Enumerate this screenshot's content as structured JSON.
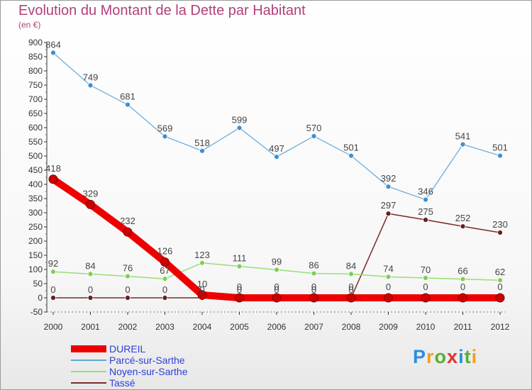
{
  "chart_data": {
    "type": "line",
    "title": "Evolution du Montant de la Dette par Habitant",
    "subtitle": "(en €)",
    "categories": [
      "2000",
      "2001",
      "2002",
      "2003",
      "2004",
      "2005",
      "2006",
      "2007",
      "2008",
      "2009",
      "2010",
      "2011",
      "2012"
    ],
    "ylim": [
      -50,
      900
    ],
    "yticks": [
      "-50",
      "0",
      "50",
      "100",
      "150",
      "200",
      "250",
      "300",
      "350",
      "400",
      "450",
      "500",
      "550",
      "600",
      "650",
      "700",
      "750",
      "800",
      "850",
      "900"
    ],
    "grid": false,
    "legend_position": "bottom-left",
    "series": [
      {
        "name": "DUREIL",
        "color": "#ee0000",
        "values": [
          418,
          329,
          232,
          126,
          10,
          0,
          0,
          0,
          0,
          0,
          0,
          0,
          0
        ],
        "labels": [
          "418",
          "329",
          "232",
          "126",
          "10",
          "0",
          "0",
          "0",
          "0",
          "0",
          "0",
          "0",
          "0"
        ]
      },
      {
        "name": "Parcé-sur-Sarthe",
        "color": "#5ea8d8",
        "values": [
          864,
          749,
          681,
          569,
          518,
          599,
          497,
          570,
          501,
          392,
          346,
          541,
          501
        ],
        "labels": [
          "864",
          "749",
          "681",
          "569",
          "518",
          "599",
          "497",
          "570",
          "501",
          "392",
          "346",
          "541",
          "501"
        ]
      },
      {
        "name": "Noyen-sur-Sarthe",
        "color": "#99dd77",
        "values": [
          92,
          84,
          76,
          67,
          123,
          111,
          99,
          86,
          84,
          74,
          70,
          66,
          62
        ],
        "labels": [
          "92",
          "84",
          "76",
          "67",
          "123",
          "111",
          "99",
          "86",
          "84",
          "74",
          "70",
          "66",
          "62"
        ]
      },
      {
        "name": "Tassé",
        "color": "#7a2a2a",
        "values": [
          0,
          0,
          0,
          0,
          0,
          0,
          0,
          0,
          0,
          297,
          275,
          252,
          230
        ],
        "labels": [
          "0",
          "0",
          "0",
          "0",
          "0",
          "0",
          "0",
          "0",
          "0",
          "297",
          "275",
          "252",
          "230"
        ]
      }
    ]
  },
  "logo": {
    "letters": [
      "P",
      "r",
      "o",
      "x",
      "i",
      "t",
      "i"
    ]
  }
}
